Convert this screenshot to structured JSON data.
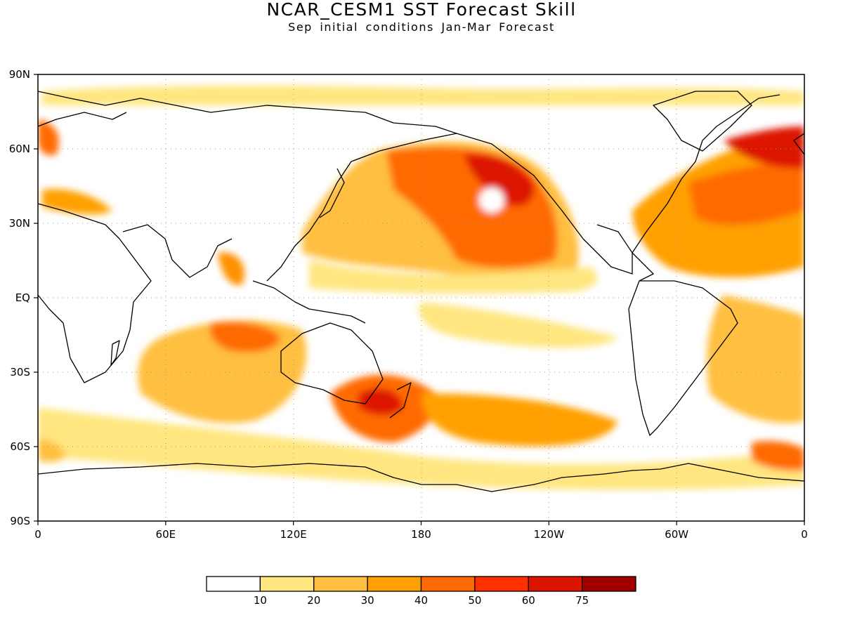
{
  "header": {
    "title": "NCAR_CESM1  SST Forecast Skill",
    "subtitle": "Sep initial conditions  Jan-Mar Forecast"
  },
  "axes": {
    "lat_ticks": [
      "90N",
      "60N",
      "30N",
      "EQ",
      "30S",
      "60S",
      "90S"
    ],
    "lon_ticks": [
      "0",
      "60E",
      "120E",
      "180",
      "120W",
      "60W",
      "0"
    ],
    "lat_values": [
      90,
      60,
      30,
      0,
      -30,
      -60,
      -90
    ],
    "lon_values": [
      0,
      60,
      120,
      180,
      240,
      300,
      360
    ]
  },
  "colorbar": {
    "labels": [
      "10",
      "20",
      "30",
      "40",
      "50",
      "60",
      "75"
    ],
    "colors": [
      "#ffffff",
      "#ffe680",
      "#ffbf40",
      "#ffa000",
      "#ff6a00",
      "#ff3000",
      "#dd1400",
      "#a00000"
    ]
  },
  "palette": {
    "land_outline": "#000000",
    "grid": "#999999"
  }
}
